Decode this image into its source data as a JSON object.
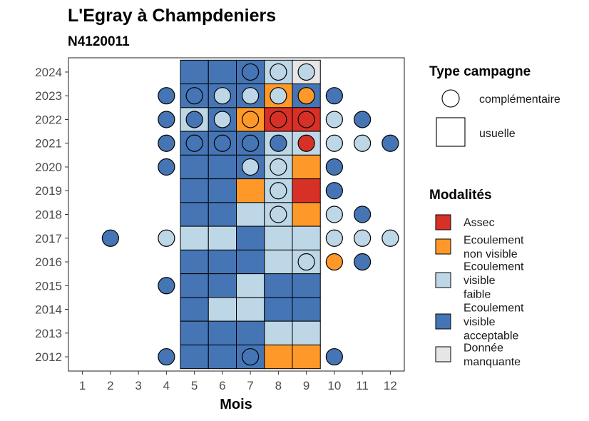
{
  "chart_data": {
    "type": "heatmap",
    "title": "L'Egray à Champdeniers",
    "subtitle": "N4120011",
    "xlabel": "Mois",
    "ylabel": "",
    "x_ticks": [
      1,
      2,
      3,
      4,
      5,
      6,
      7,
      8,
      9,
      10,
      11,
      12
    ],
    "y_ticks": [
      2012,
      2013,
      2014,
      2015,
      2016,
      2017,
      2018,
      2019,
      2020,
      2021,
      2022,
      2023,
      2024
    ],
    "xlim": [
      0.5,
      12.5
    ],
    "ylim": [
      2011.4,
      2024.6
    ],
    "grid": false,
    "legend_position": "right",
    "colors": {
      "Assec": "#d73027",
      "Ecoulement non visible": "#fe9929",
      "Ecoulement visible faible": "#bdd7e7",
      "Ecoulement visible acceptable": "#4575b4",
      "Donnée manquante": "#e6e6e6"
    },
    "legend": {
      "type_title": "Type campagne",
      "type_items": [
        {
          "label": "complémentaire",
          "shape": "circle"
        },
        {
          "label": "usuelle",
          "shape": "square"
        }
      ],
      "modalites_title": "Modalités",
      "modalites_items": [
        {
          "key": "Assec",
          "lines": [
            "Assec"
          ]
        },
        {
          "key": "Ecoulement non visible",
          "lines": [
            "Ecoulement",
            "non visible"
          ]
        },
        {
          "key": "Ecoulement visible faible",
          "lines": [
            "Ecoulement",
            "visible",
            "faible"
          ]
        },
        {
          "key": "Ecoulement visible acceptable",
          "lines": [
            "Ecoulement",
            "visible",
            "acceptable"
          ]
        },
        {
          "key": "Donnée manquante",
          "lines": [
            "Donnée",
            "manquante"
          ]
        }
      ]
    },
    "usuelle": [
      {
        "year": 2024,
        "month": 5,
        "value": "Ecoulement visible acceptable"
      },
      {
        "year": 2024,
        "month": 6,
        "value": "Ecoulement visible acceptable"
      },
      {
        "year": 2024,
        "month": 7,
        "value": "Ecoulement visible acceptable"
      },
      {
        "year": 2024,
        "month": 8,
        "value": "Ecoulement visible faible"
      },
      {
        "year": 2024,
        "month": 9,
        "value": "Donnée manquante"
      },
      {
        "year": 2023,
        "month": 5,
        "value": "Ecoulement visible acceptable"
      },
      {
        "year": 2023,
        "month": 6,
        "value": "Ecoulement visible acceptable"
      },
      {
        "year": 2023,
        "month": 7,
        "value": "Ecoulement visible acceptable"
      },
      {
        "year": 2023,
        "month": 8,
        "value": "Ecoulement non visible"
      },
      {
        "year": 2023,
        "month": 9,
        "value": "Ecoulement visible acceptable"
      },
      {
        "year": 2022,
        "month": 5,
        "value": "Ecoulement visible faible"
      },
      {
        "year": 2022,
        "month": 6,
        "value": "Ecoulement visible acceptable"
      },
      {
        "year": 2022,
        "month": 7,
        "value": "Ecoulement non visible"
      },
      {
        "year": 2022,
        "month": 8,
        "value": "Assec"
      },
      {
        "year": 2022,
        "month": 9,
        "value": "Assec"
      },
      {
        "year": 2021,
        "month": 5,
        "value": "Ecoulement visible acceptable"
      },
      {
        "year": 2021,
        "month": 6,
        "value": "Ecoulement visible acceptable"
      },
      {
        "year": 2021,
        "month": 7,
        "value": "Ecoulement visible acceptable"
      },
      {
        "year": 2021,
        "month": 8,
        "value": "Ecoulement visible faible"
      },
      {
        "year": 2021,
        "month": 9,
        "value": "Ecoulement visible faible"
      },
      {
        "year": 2020,
        "month": 5,
        "value": "Ecoulement visible acceptable"
      },
      {
        "year": 2020,
        "month": 6,
        "value": "Ecoulement visible acceptable"
      },
      {
        "year": 2020,
        "month": 7,
        "value": "Ecoulement visible acceptable"
      },
      {
        "year": 2020,
        "month": 8,
        "value": "Ecoulement visible faible"
      },
      {
        "year": 2020,
        "month": 9,
        "value": "Ecoulement non visible"
      },
      {
        "year": 2019,
        "month": 5,
        "value": "Ecoulement visible acceptable"
      },
      {
        "year": 2019,
        "month": 6,
        "value": "Ecoulement visible acceptable"
      },
      {
        "year": 2019,
        "month": 7,
        "value": "Ecoulement non visible"
      },
      {
        "year": 2019,
        "month": 8,
        "value": "Ecoulement visible faible"
      },
      {
        "year": 2019,
        "month": 9,
        "value": "Assec"
      },
      {
        "year": 2018,
        "month": 5,
        "value": "Ecoulement visible acceptable"
      },
      {
        "year": 2018,
        "month": 6,
        "value": "Ecoulement visible acceptable"
      },
      {
        "year": 2018,
        "month": 7,
        "value": "Ecoulement visible faible"
      },
      {
        "year": 2018,
        "month": 8,
        "value": "Ecoulement visible faible"
      },
      {
        "year": 2018,
        "month": 9,
        "value": "Ecoulement non visible"
      },
      {
        "year": 2017,
        "month": 5,
        "value": "Ecoulement visible faible"
      },
      {
        "year": 2017,
        "month": 6,
        "value": "Ecoulement visible faible"
      },
      {
        "year": 2017,
        "month": 7,
        "value": "Ecoulement visible acceptable"
      },
      {
        "year": 2017,
        "month": 8,
        "value": "Ecoulement visible faible"
      },
      {
        "year": 2017,
        "month": 9,
        "value": "Ecoulement visible faible"
      },
      {
        "year": 2016,
        "month": 5,
        "value": "Ecoulement visible acceptable"
      },
      {
        "year": 2016,
        "month": 6,
        "value": "Ecoulement visible acceptable"
      },
      {
        "year": 2016,
        "month": 7,
        "value": "Ecoulement visible acceptable"
      },
      {
        "year": 2016,
        "month": 8,
        "value": "Ecoulement visible faible"
      },
      {
        "year": 2016,
        "month": 9,
        "value": "Ecoulement visible faible"
      },
      {
        "year": 2015,
        "month": 5,
        "value": "Ecoulement visible acceptable"
      },
      {
        "year": 2015,
        "month": 6,
        "value": "Ecoulement visible acceptable"
      },
      {
        "year": 2015,
        "month": 7,
        "value": "Ecoulement visible faible"
      },
      {
        "year": 2015,
        "month": 8,
        "value": "Ecoulement visible acceptable"
      },
      {
        "year": 2015,
        "month": 9,
        "value": "Ecoulement visible acceptable"
      },
      {
        "year": 2014,
        "month": 5,
        "value": "Ecoulement visible acceptable"
      },
      {
        "year": 2014,
        "month": 6,
        "value": "Ecoulement visible faible"
      },
      {
        "year": 2014,
        "month": 7,
        "value": "Ecoulement visible faible"
      },
      {
        "year": 2014,
        "month": 8,
        "value": "Ecoulement visible acceptable"
      },
      {
        "year": 2014,
        "month": 9,
        "value": "Ecoulement visible acceptable"
      },
      {
        "year": 2013,
        "month": 5,
        "value": "Ecoulement visible acceptable"
      },
      {
        "year": 2013,
        "month": 6,
        "value": "Ecoulement visible acceptable"
      },
      {
        "year": 2013,
        "month": 7,
        "value": "Ecoulement visible acceptable"
      },
      {
        "year": 2013,
        "month": 8,
        "value": "Ecoulement visible faible"
      },
      {
        "year": 2013,
        "month": 9,
        "value": "Ecoulement visible faible"
      },
      {
        "year": 2012,
        "month": 5,
        "value": "Ecoulement visible acceptable"
      },
      {
        "year": 2012,
        "month": 6,
        "value": "Ecoulement visible acceptable"
      },
      {
        "year": 2012,
        "month": 7,
        "value": "Ecoulement visible acceptable"
      },
      {
        "year": 2012,
        "month": 8,
        "value": "Ecoulement non visible"
      },
      {
        "year": 2012,
        "month": 9,
        "value": "Ecoulement non visible"
      }
    ],
    "complementaire": [
      {
        "year": 2024,
        "month": 7,
        "value": "Ecoulement visible acceptable"
      },
      {
        "year": 2024,
        "month": 8,
        "value": "Ecoulement visible faible"
      },
      {
        "year": 2024,
        "month": 9,
        "value": "Ecoulement visible faible"
      },
      {
        "year": 2023,
        "month": 4,
        "value": "Ecoulement visible acceptable"
      },
      {
        "year": 2023,
        "month": 5,
        "value": "Ecoulement visible acceptable"
      },
      {
        "year": 2023,
        "month": 6,
        "value": "Ecoulement visible faible"
      },
      {
        "year": 2023,
        "month": 7,
        "value": "Ecoulement visible faible"
      },
      {
        "year": 2023,
        "month": 8,
        "value": "Ecoulement visible faible"
      },
      {
        "year": 2023,
        "month": 9,
        "value": "Ecoulement non visible"
      },
      {
        "year": 2023,
        "month": 10,
        "value": "Ecoulement visible acceptable"
      },
      {
        "year": 2022,
        "month": 4,
        "value": "Ecoulement visible acceptable"
      },
      {
        "year": 2022,
        "month": 5,
        "value": "Ecoulement visible acceptable"
      },
      {
        "year": 2022,
        "month": 6,
        "value": "Ecoulement visible faible"
      },
      {
        "year": 2022,
        "month": 7,
        "value": "Ecoulement non visible"
      },
      {
        "year": 2022,
        "month": 8,
        "value": "Assec"
      },
      {
        "year": 2022,
        "month": 9,
        "value": "Assec"
      },
      {
        "year": 2022,
        "month": 10,
        "value": "Ecoulement visible faible"
      },
      {
        "year": 2022,
        "month": 11,
        "value": "Ecoulement visible acceptable"
      },
      {
        "year": 2021,
        "month": 4,
        "value": "Ecoulement visible acceptable"
      },
      {
        "year": 2021,
        "month": 5,
        "value": "Ecoulement visible acceptable"
      },
      {
        "year": 2021,
        "month": 6,
        "value": "Ecoulement visible acceptable"
      },
      {
        "year": 2021,
        "month": 7,
        "value": "Ecoulement visible acceptable"
      },
      {
        "year": 2021,
        "month": 8,
        "value": "Ecoulement visible acceptable"
      },
      {
        "year": 2021,
        "month": 9,
        "value": "Assec"
      },
      {
        "year": 2021,
        "month": 10,
        "value": "Ecoulement visible faible"
      },
      {
        "year": 2021,
        "month": 11,
        "value": "Ecoulement visible faible"
      },
      {
        "year": 2021,
        "month": 12,
        "value": "Ecoulement visible acceptable"
      },
      {
        "year": 2020,
        "month": 4,
        "value": "Ecoulement visible acceptable"
      },
      {
        "year": 2020,
        "month": 7,
        "value": "Ecoulement visible faible"
      },
      {
        "year": 2020,
        "month": 8,
        "value": "Ecoulement visible faible"
      },
      {
        "year": 2020,
        "month": 10,
        "value": "Ecoulement visible acceptable"
      },
      {
        "year": 2019,
        "month": 8,
        "value": "Ecoulement visible faible"
      },
      {
        "year": 2019,
        "month": 10,
        "value": "Ecoulement visible acceptable"
      },
      {
        "year": 2018,
        "month": 8,
        "value": "Ecoulement visible faible"
      },
      {
        "year": 2018,
        "month": 10,
        "value": "Ecoulement visible faible"
      },
      {
        "year": 2018,
        "month": 11,
        "value": "Ecoulement visible acceptable"
      },
      {
        "year": 2017,
        "month": 2,
        "value": "Ecoulement visible acceptable"
      },
      {
        "year": 2017,
        "month": 4,
        "value": "Ecoulement visible faible"
      },
      {
        "year": 2017,
        "month": 10,
        "value": "Ecoulement visible faible"
      },
      {
        "year": 2017,
        "month": 11,
        "value": "Ecoulement visible faible"
      },
      {
        "year": 2017,
        "month": 12,
        "value": "Ecoulement visible faible"
      },
      {
        "year": 2016,
        "month": 9,
        "value": "Ecoulement visible faible"
      },
      {
        "year": 2016,
        "month": 10,
        "value": "Ecoulement non visible"
      },
      {
        "year": 2016,
        "month": 11,
        "value": "Ecoulement visible acceptable"
      },
      {
        "year": 2015,
        "month": 4,
        "value": "Ecoulement visible acceptable"
      },
      {
        "year": 2012,
        "month": 4,
        "value": "Ecoulement visible acceptable"
      },
      {
        "year": 2012,
        "month": 7,
        "value": "Ecoulement visible acceptable"
      },
      {
        "year": 2012,
        "month": 10,
        "value": "Ecoulement visible acceptable"
      }
    ]
  }
}
